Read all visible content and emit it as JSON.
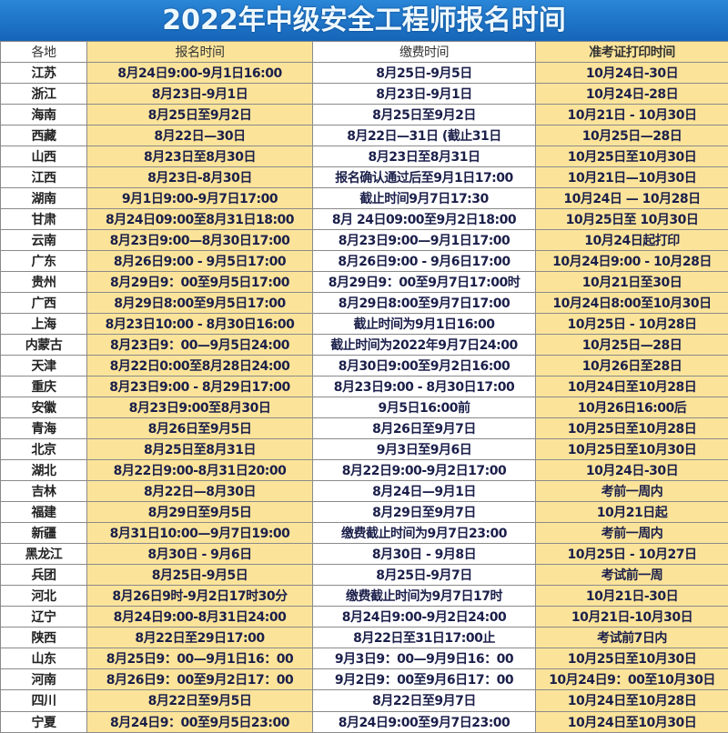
{
  "title": "2022年中级安全工程师报名时间",
  "headers": [
    "各地",
    "报名时间",
    "缴费时间",
    "准考证打印时间"
  ],
  "rows": [
    [
      "江苏",
      "8月24日9:00-9月1日16:00",
      "8月25日-9月5日",
      "10月24日-30日"
    ],
    [
      "浙江",
      "8月23日-9月1日",
      "8月23日-9月1日",
      "10月24日-28日"
    ],
    [
      "海南",
      "8月25日至9月2日",
      "8月25日至9月2日",
      "10月21日 - 10月30日"
    ],
    [
      "西藏",
      "8月22日—30日",
      "8月22日—31日 (截止31日",
      "10月25日—28日"
    ],
    [
      "山西",
      "8月23日至8月30日",
      "8月23日至8月31日",
      "10月25日至10月30日"
    ],
    [
      "江西",
      "8月23日-8月30日",
      "报名确认通过后至9月1日17:00",
      "10月21日—10月30日"
    ],
    [
      "湖南",
      "9月1日9:00-9月7日17:00",
      "截止时间9月7日17:30",
      "10月24日 — 10月28日"
    ],
    [
      "甘肃",
      "8月24日09:00至8月31日18:00",
      "8月 24日09:00至9月2日18:00",
      "10月25日至 10月30日"
    ],
    [
      "云南",
      "8月23日9:00—8月30日17:00",
      "8月23日9:00—9月1日17:00",
      "10月24日起打印"
    ],
    [
      "广东",
      "8月26日9:00 - 9月5日17:00",
      "8月26日9:00 - 9月6日17:00",
      "10月24日9:00 - 10月28日"
    ],
    [
      "贵州",
      "8月29日9：00至9月5日17:00",
      "8月29日9：00至9月7日17:00时",
      "10月21日至30日"
    ],
    [
      "广西",
      "8月29日8:00至9月5日17:00",
      "8月29日8:00至9月7日17:00",
      "10月24日8:00至10月30日"
    ],
    [
      "上海",
      "8月23日10:00 - 8月30日16:00",
      "截止时间为9月1日16:00",
      "10月25日 - 10月28日"
    ],
    [
      "内蒙古",
      "8月23日9：00—9月5日24:00",
      "截止时间为2022年9月7日24:00",
      "10月25日—28日"
    ],
    [
      "天津",
      "8月22日0:00至8月28日24:00",
      "8月30日9:00至9月2日16:00",
      "10月26日至28日"
    ],
    [
      "重庆",
      "8月23日9:00 - 8月29日17:00",
      "8月23日9:00 - 8月30日17:00",
      "10月24日至10月28日"
    ],
    [
      "安徽",
      "8月23日9:00至8月30日",
      "9月5日16:00前",
      "10月26日16:00后"
    ],
    [
      "青海",
      "8月26日至9月5日",
      "8月26日至9月7日",
      "10月25日至10月28日"
    ],
    [
      "北京",
      "8月25日至8月31日",
      "9月3日至9月6日",
      "10月25日至10月30日"
    ],
    [
      "湖北",
      "8月22日9:00-8月31日20:00",
      "8月22日9:00-9月2日17:00",
      "10月24日-30日"
    ],
    [
      "吉林",
      "8月22日—8月30日",
      "8月24日—9月1日",
      "考前一周内"
    ],
    [
      "福建",
      "8月29日至9月5日",
      "8月29日至9月7日",
      "10月21日起"
    ],
    [
      "新疆",
      "8月31日10:00—9月7日19:00",
      "缴费截止时间为9月7日23:00",
      "考前一周内"
    ],
    [
      "黑龙江",
      "8月30日 - 9月6日",
      "8月30日 - 9月8日",
      "10月25日 - 10月27日"
    ],
    [
      "兵团",
      "8月25日-9月5日",
      "8月25日-9月7日",
      "考试前一周"
    ],
    [
      "河北",
      "8月26日9时-9月2日17时30分",
      "缴费截止时间为9月7日17时",
      "10月21日-30日"
    ],
    [
      "辽宁",
      "8月24日9:00-8月31日24:00",
      "8月24日9:00-9月2日24:00",
      "10月21日-10月30日"
    ],
    [
      "陕西",
      "8月22日至29日17:00",
      "8月22日至31日17:00止",
      "考试前7日内"
    ],
    [
      "山东",
      "8月25日9：00—9月1日16：00",
      "9月3日9：00—9月9日16：00",
      "10月25日至10月30日"
    ],
    [
      "河南",
      "8月26日9：00至9月2日17：00",
      "9月2日9：00至9月6日17：00",
      "10月24日9：00至10月30日"
    ],
    [
      "四川",
      "8月22日至9月5日",
      "8月22日至9月7日",
      "10月24日至10月28日"
    ],
    [
      "宁夏",
      "8月24日9：00至9月5日23:00",
      "8月24日9:00至9月7日23:00",
      "10月24日至10月30日"
    ]
  ],
  "colors": {
    "title_bg": "#1e74c8",
    "cell_yellow": "#fbe49a",
    "text": "#1b1f4a"
  }
}
